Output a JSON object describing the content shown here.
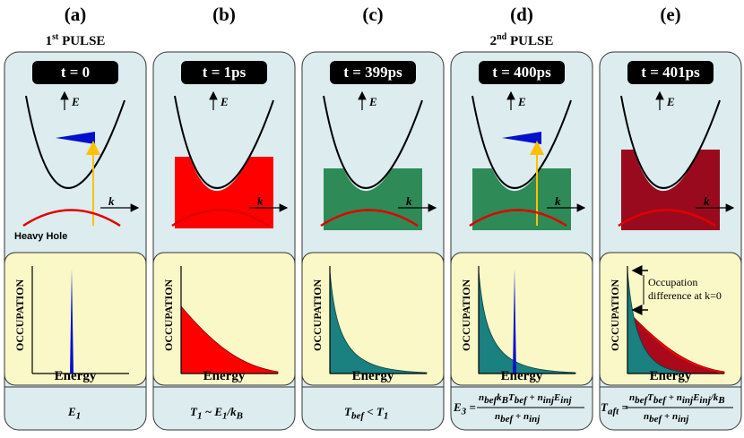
{
  "panels": [
    {
      "letter": "(a)",
      "time": "t = 0",
      "pulse_header": {
        "ordinal": "1",
        "sup": "st",
        "text": " PULSE"
      },
      "hole_label": "Heavy Hole",
      "fill": "none",
      "formula": "E1"
    },
    {
      "letter": "(b)",
      "time": "t = 1ps",
      "fill": "red",
      "formula": "T1 ~ E1/kB"
    },
    {
      "letter": "(c)",
      "time": "t = 399ps",
      "fill": "green",
      "formula": "Tbef < T1"
    },
    {
      "letter": "(d)",
      "time": "t = 400ps",
      "pulse_header": {
        "ordinal": "2",
        "sup": "nd",
        "text": " PULSE"
      },
      "fill": "green+injection",
      "formula": "E3 = (nbef kB Tbef + ninj Einj) / (nbef + ninj)"
    },
    {
      "letter": "(e)",
      "time": "t = 401ps",
      "fill": "darkred",
      "formula": "Taft = (nbef Tbef + ninj Einj/kB) / (nbef + ninj)",
      "annotation": {
        "line1": "Occupation",
        "line2": "difference at k=0"
      }
    }
  ],
  "axis_labels": {
    "energy_up": "E",
    "momentum": "k",
    "occupation": "OCCUPATION",
    "energy": "Energy"
  },
  "colors": {
    "card_top": "#dcecef",
    "card_bottom": "#fbf8c8",
    "red": "#ff0000",
    "green": "#2e8b57",
    "teal": "#1a8080",
    "darkred": "#9a0a1e",
    "blue": "#0010cc",
    "orange": "#ffc000"
  }
}
